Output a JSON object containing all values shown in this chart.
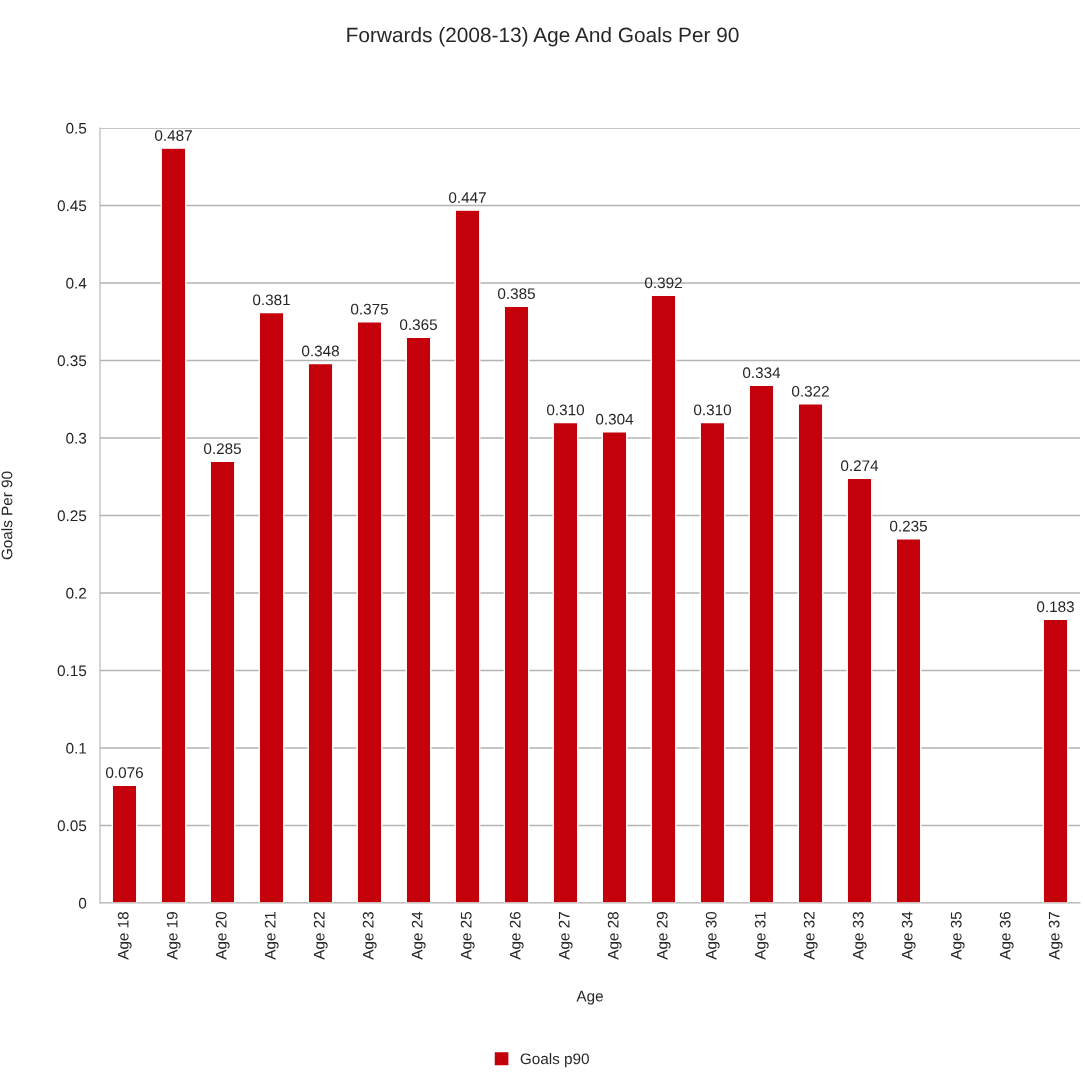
{
  "chart_data": {
    "type": "bar",
    "title": "Forwards (2008-13) Age And Goals Per 90",
    "xlabel": "Age",
    "ylabel": "Goals Per 90",
    "categories": [
      "Age 18",
      "Age 19",
      "Age 20",
      "Age 21",
      "Age 22",
      "Age 23",
      "Age 24",
      "Age 25",
      "Age 26",
      "Age 27",
      "Age 28",
      "Age 29",
      "Age 30",
      "Age 31",
      "Age 32",
      "Age 33",
      "Age 34",
      "Age 35",
      "Age 36",
      "Age 37"
    ],
    "series": [
      {
        "name": "Goals p90",
        "color": "#c4000b",
        "values": [
          0.076,
          0.487,
          0.285,
          0.381,
          0.348,
          0.375,
          0.365,
          0.447,
          0.385,
          0.31,
          0.304,
          0.392,
          0.31,
          0.334,
          0.322,
          0.274,
          0.235,
          null,
          null,
          0.183
        ],
        "value_labels": [
          "0.076",
          "0.487",
          "0.285",
          "0.381",
          "0.348",
          "0.375",
          "0.365",
          "0.447",
          "0.385",
          "0.310",
          "0.304",
          "0.392",
          "0.310",
          "0.334",
          "0.322",
          "0.274",
          "0.235",
          null,
          null,
          "0.183"
        ]
      }
    ],
    "ylim": [
      0,
      0.5
    ],
    "yticks": [
      0,
      0.05,
      0.1,
      0.15,
      0.2,
      0.25,
      0.3,
      0.35,
      0.4,
      0.45,
      0.5
    ],
    "grid": "y",
    "legend": "bottom"
  }
}
